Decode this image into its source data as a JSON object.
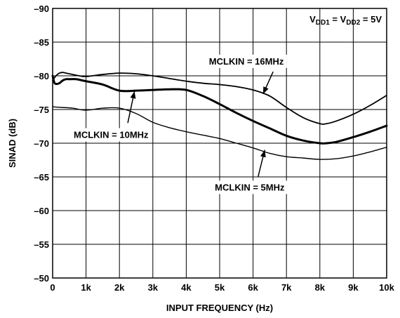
{
  "chart_data": {
    "type": "line",
    "title": "",
    "xlabel": "INPUT FREQUENCY (Hz)",
    "ylabel": "SINAD (dB)",
    "xlim": [
      0,
      10000
    ],
    "ylim": [
      -90,
      -50
    ],
    "grid": true,
    "x_ticks": [
      {
        "value": 0,
        "label": "0"
      },
      {
        "value": 1000,
        "label": "1k"
      },
      {
        "value": 2000,
        "label": "2k"
      },
      {
        "value": 3000,
        "label": "3k"
      },
      {
        "value": 4000,
        "label": "4k"
      },
      {
        "value": 5000,
        "label": "5k"
      },
      {
        "value": 6000,
        "label": "6k"
      },
      {
        "value": 7000,
        "label": "7k"
      },
      {
        "value": 8000,
        "label": "8k"
      },
      {
        "value": 9000,
        "label": "9k"
      },
      {
        "value": 10000,
        "label": "10k"
      }
    ],
    "y_ticks": [
      {
        "value": -90,
        "label": "–90"
      },
      {
        "value": -85,
        "label": "–85"
      },
      {
        "value": -80,
        "label": "–80"
      },
      {
        "value": -75,
        "label": "–75"
      },
      {
        "value": -70,
        "label": "–70"
      },
      {
        "value": -65,
        "label": "–65"
      },
      {
        "value": -60,
        "label": "–60"
      },
      {
        "value": -55,
        "label": "–55"
      },
      {
        "value": -50,
        "label": "–50"
      }
    ],
    "condition": {
      "prefix": "V",
      "sub1": "DD1",
      "mid": " = V",
      "sub2": "DD2",
      "suffix": " = 5V"
    },
    "series": [
      {
        "name": "MCLKIN = 16MHz",
        "x": [
          0,
          100,
          200,
          300,
          400,
          500,
          600,
          800,
          1000,
          1500,
          2000,
          2500,
          3000,
          3500,
          4000,
          4500,
          5000,
          5500,
          6000,
          6500,
          7000,
          7500,
          8000,
          8200,
          8500,
          9000,
          9500,
          10000
        ],
        "y": [
          -79.3,
          -80.0,
          -80.4,
          -80.5,
          -80.4,
          -80.3,
          -80.2,
          -80.0,
          -79.9,
          -80.2,
          -80.4,
          -80.3,
          -80.0,
          -79.6,
          -79.2,
          -78.9,
          -78.7,
          -78.4,
          -77.9,
          -77.0,
          -75.3,
          -73.8,
          -72.9,
          -72.9,
          -73.3,
          -74.3,
          -75.6,
          -77.1
        ],
        "stroke_width": 1.8
      },
      {
        "name": "MCLKIN = 10MHz",
        "x": [
          0,
          50,
          100,
          200,
          300,
          400,
          500,
          700,
          1000,
          1500,
          2000,
          2500,
          3000,
          3500,
          4000,
          4500,
          5000,
          5500,
          6000,
          6500,
          7000,
          7500,
          8000,
          8200,
          8500,
          9000,
          9500,
          10000
        ],
        "y": [
          -80.0,
          -79.0,
          -78.8,
          -78.9,
          -79.3,
          -79.5,
          -79.5,
          -79.5,
          -79.2,
          -78.7,
          -77.8,
          -77.8,
          -77.9,
          -78.0,
          -77.9,
          -77.0,
          -75.8,
          -74.5,
          -73.3,
          -72.2,
          -71.1,
          -70.4,
          -70.0,
          -70.0,
          -70.2,
          -70.9,
          -71.7,
          -72.6
        ],
        "stroke_width": 3
      },
      {
        "name": "MCLKIN = 5MHz",
        "x": [
          0,
          300,
          600,
          1000,
          1500,
          2000,
          2500,
          3000,
          3500,
          4000,
          4500,
          5000,
          5500,
          6000,
          6500,
          7000,
          7500,
          8000,
          8500,
          9000,
          9500,
          10000
        ],
        "y": [
          -75.4,
          -75.3,
          -75.2,
          -74.9,
          -75.2,
          -75.2,
          -74.4,
          -73.1,
          -72.3,
          -71.7,
          -71.2,
          -70.7,
          -70.0,
          -69.3,
          -68.5,
          -68.0,
          -67.8,
          -67.6,
          -67.7,
          -68.1,
          -68.7,
          -69.4
        ],
        "stroke_width": 1.4
      }
    ],
    "annotations": [
      {
        "text": "MCLKIN = 16MHz",
        "series_index": 0,
        "target_x": 6300,
        "target_y": -77.3,
        "tail_x": 6600,
        "tail_y": -80.6,
        "label_x": 5800,
        "label_y": -82.2
      },
      {
        "text": "MCLKIN = 10MHz",
        "series_index": 1,
        "target_x": 2450,
        "target_y": -77.7,
        "tail_x": 2250,
        "tail_y": -73.0,
        "label_x": 1750,
        "label_y": -71.3
      },
      {
        "text": "MCLKIN = 5MHz",
        "series_index": 2,
        "target_x": 6350,
        "target_y": -69.0,
        "tail_x": 6150,
        "tail_y": -65.0,
        "label_x": 5900,
        "label_y": -63.5
      }
    ]
  }
}
